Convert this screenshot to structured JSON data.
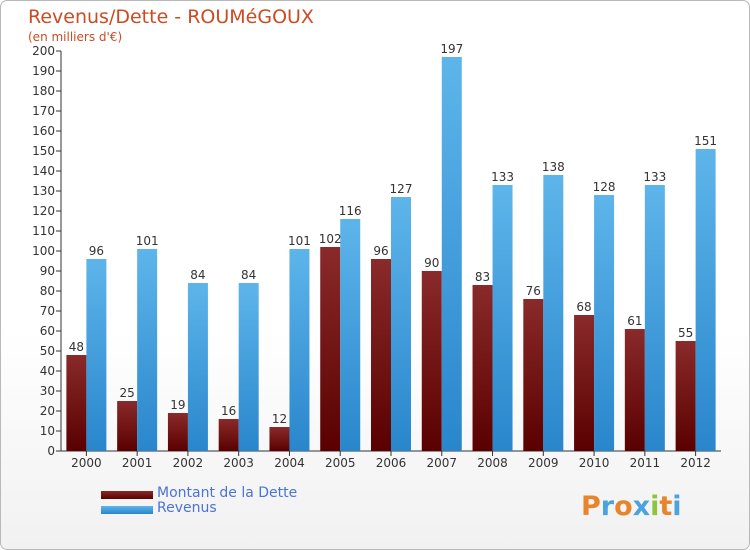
{
  "chart_data": {
    "type": "bar",
    "title": "Revenus/Dette - ROUMéGOUX",
    "subtitle": "(en milliers d'€)",
    "xlabel": "",
    "ylabel": "",
    "ylim": [
      0,
      200
    ],
    "ytick_step": 10,
    "yticks": [
      "0",
      "10",
      "20",
      "30",
      "40",
      "50",
      "60",
      "70",
      "80",
      "90",
      "100",
      "110",
      "120",
      "130",
      "140",
      "150",
      "160",
      "170",
      "180",
      "190",
      "200"
    ],
    "categories": [
      "2000",
      "2001",
      "2002",
      "2003",
      "2004",
      "2005",
      "2006",
      "2007",
      "2008",
      "2009",
      "2010",
      "2011",
      "2012"
    ],
    "series": [
      {
        "name": "Montant de la Dette",
        "color": "#7a1414",
        "values": [
          48,
          25,
          19,
          16,
          12,
          102,
          96,
          90,
          83,
          76,
          68,
          61,
          55
        ],
        "labels": [
          "48",
          "25",
          "19",
          "16",
          "12",
          "102",
          "96",
          "90",
          "83",
          "76",
          "68",
          "61",
          "55"
        ]
      },
      {
        "name": "Revenus",
        "color": "#3d9ee0",
        "values": [
          96,
          101,
          84,
          84,
          101,
          116,
          127,
          197,
          133,
          138,
          128,
          133,
          151
        ],
        "labels": [
          "96",
          "101",
          "84",
          "84",
          "101",
          "116",
          "127",
          "197",
          "133",
          "138",
          "128",
          "133",
          "151"
        ]
      }
    ],
    "grid": false,
    "legend_position": "bottom-left"
  },
  "legend": [
    {
      "label": "Montant de la Dette",
      "color": "#6b0f0f"
    },
    {
      "label": "Revenus",
      "color": "#3d9ee0"
    }
  ],
  "logo": {
    "letters": [
      "P",
      "r",
      "o",
      "x",
      "i",
      "t",
      "i"
    ],
    "colors": [
      "#e8842c",
      "#4aa3df",
      "#e8842c",
      "#4aa3df",
      "#8cc63f",
      "#e8842c",
      "#4aa3df"
    ]
  }
}
